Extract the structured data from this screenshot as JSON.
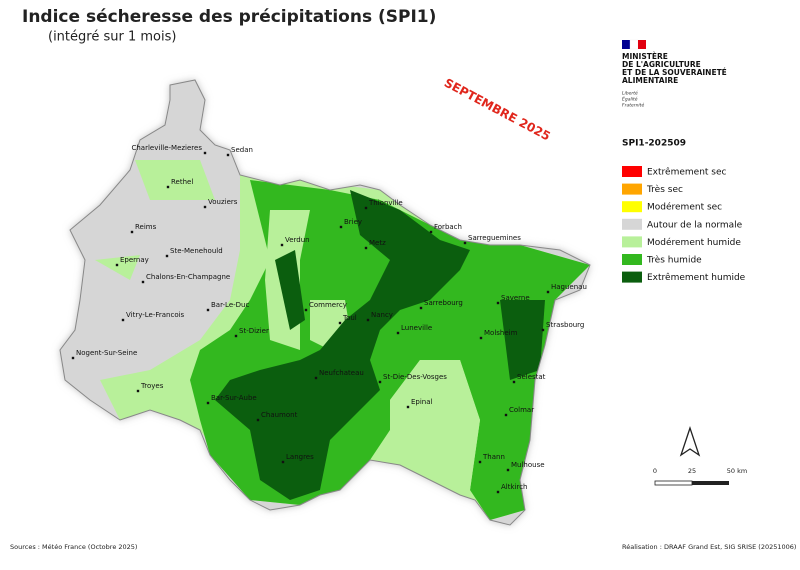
{
  "header": {
    "title": "Indice sécheresse des précipitations (SPI1)",
    "subtitle": "(intégré sur 1 mois)"
  },
  "stamp": "SEPTEMBRE 2025",
  "ministry": {
    "lines": [
      "MINISTÈRE",
      "DE L'AGRICULTURE",
      "ET DE LA SOUVERAINETÉ",
      "ALIMENTAIRE"
    ],
    "motto": [
      "Liberté",
      "Égalité",
      "Fraternité"
    ]
  },
  "legend": {
    "title": "SPI1-202509",
    "items": [
      {
        "label": "Extrêmement sec",
        "color": "#ff0000"
      },
      {
        "label": "Très sec",
        "color": "#ffa500"
      },
      {
        "label": "Modérement sec",
        "color": "#ffff00"
      },
      {
        "label": "Autour de la normale",
        "color": "#d6d6d6"
      },
      {
        "label": "Modérement humide",
        "color": "#b8f09a"
      },
      {
        "label": "Très humide",
        "color": "#33b81f"
      },
      {
        "label": "Extrêmement humide",
        "color": "#0b5e0e"
      }
    ]
  },
  "cities": [
    "Charleville-Mezieres",
    "Sedan",
    "Rethel",
    "Vouziers",
    "Reims",
    "Ste-Menehould",
    "Epernay",
    "Chalons-En-Champagne",
    "Verdun",
    "Briey",
    "Thionville",
    "Forbach",
    "Sarreguemines",
    "Metz",
    "Bar-Le-Duc",
    "Commercy",
    "Haguenau",
    "Saverne",
    "Sarrebourg",
    "Strasbourg",
    "Vitry-Le-Francois",
    "St-Dizier",
    "Toul",
    "Nancy",
    "Luneville",
    "Molsheim",
    "Nogent-Sur-Seine",
    "Neufchateau",
    "St-Die-Des-Vosges",
    "Selestat",
    "Troyes",
    "Bar-Sur-Aube",
    "Epinal",
    "Chaumont",
    "Colmar",
    "Langres",
    "Thann",
    "Mulhouse",
    "Altkirch"
  ],
  "scale": {
    "labels": [
      "0",
      "25",
      "50 km"
    ]
  },
  "footer": {
    "sources": "Sources : Météo France (Octobre 2025)",
    "credit": "Réalisation : DRAAF Grand Est, SIG SRISE (20251006)"
  }
}
